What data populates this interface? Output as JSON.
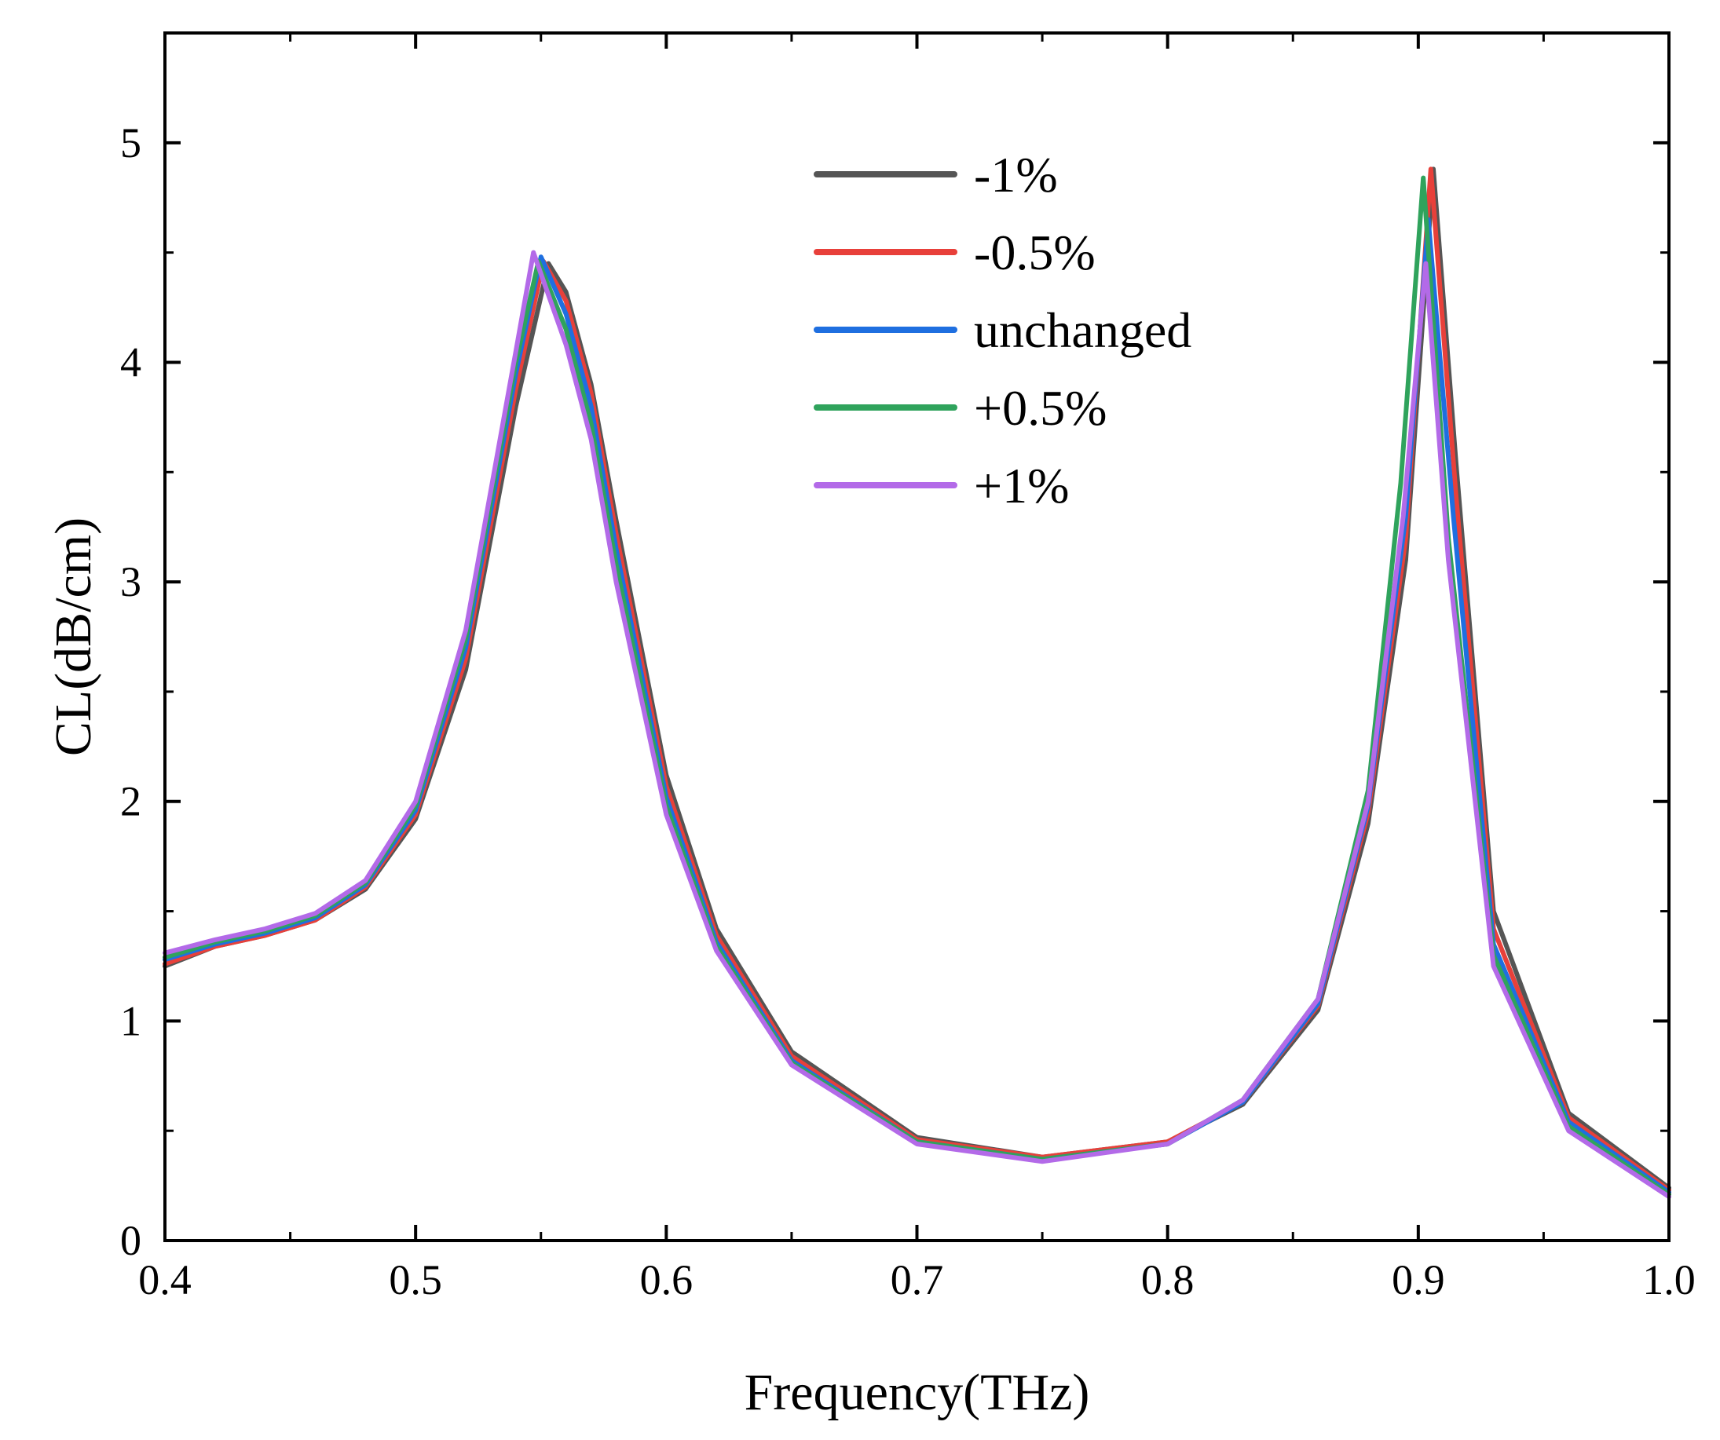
{
  "chart_data": {
    "type": "line",
    "title": "",
    "xlabel": "Frequency(THz)",
    "ylabel": "CL(dB/cm)",
    "xlim": [
      0.4,
      1.0
    ],
    "ylim": [
      0,
      5.5
    ],
    "xticks": [
      0.4,
      0.5,
      0.6,
      0.7,
      0.8,
      0.9,
      1.0
    ],
    "xtick_labels": [
      "0.4",
      "0.5",
      "0.6",
      "0.7",
      "0.8",
      "0.9",
      "1.0"
    ],
    "yticks": [
      0,
      1,
      2,
      3,
      4,
      5
    ],
    "ytick_labels": [
      "0",
      "1",
      "2",
      "3",
      "4",
      "5"
    ],
    "grid": false,
    "legend_position": "top-right",
    "series": [
      {
        "name": "-1%",
        "color": "#555555",
        "x": [
          0.4,
          0.42,
          0.44,
          0.46,
          0.48,
          0.5,
          0.52,
          0.54,
          0.553,
          0.56,
          0.57,
          0.58,
          0.6,
          0.62,
          0.65,
          0.7,
          0.75,
          0.8,
          0.83,
          0.86,
          0.88,
          0.895,
          0.906,
          0.915,
          0.93,
          0.96,
          1.0
        ],
        "y": [
          1.25,
          1.34,
          1.39,
          1.46,
          1.6,
          1.92,
          2.6,
          3.8,
          4.45,
          4.32,
          3.9,
          3.28,
          2.12,
          1.42,
          0.86,
          0.47,
          0.38,
          0.45,
          0.62,
          1.05,
          1.9,
          3.1,
          4.88,
          3.55,
          1.5,
          0.58,
          0.24
        ]
      },
      {
        "name": "-0.5%",
        "color": "#e8403a",
        "x": [
          0.4,
          0.42,
          0.44,
          0.46,
          0.48,
          0.5,
          0.52,
          0.54,
          0.551,
          0.56,
          0.57,
          0.58,
          0.6,
          0.62,
          0.65,
          0.7,
          0.75,
          0.8,
          0.83,
          0.86,
          0.88,
          0.895,
          0.905,
          0.915,
          0.93,
          0.96,
          1.0
        ],
        "y": [
          1.26,
          1.34,
          1.39,
          1.46,
          1.61,
          1.94,
          2.65,
          3.88,
          4.46,
          4.28,
          3.86,
          3.22,
          2.07,
          1.39,
          0.84,
          0.46,
          0.38,
          0.45,
          0.63,
          1.07,
          1.95,
          3.2,
          4.88,
          3.4,
          1.42,
          0.56,
          0.23
        ]
      },
      {
        "name": "unchanged",
        "color": "#1f6fe0",
        "x": [
          0.4,
          0.42,
          0.44,
          0.46,
          0.48,
          0.5,
          0.52,
          0.54,
          0.55,
          0.56,
          0.57,
          0.58,
          0.6,
          0.62,
          0.65,
          0.7,
          0.75,
          0.8,
          0.83,
          0.86,
          0.88,
          0.895,
          0.904,
          0.914,
          0.93,
          0.96,
          1.0
        ],
        "y": [
          1.28,
          1.35,
          1.4,
          1.47,
          1.62,
          1.96,
          2.7,
          3.95,
          4.48,
          4.22,
          3.8,
          3.15,
          2.02,
          1.36,
          0.82,
          0.45,
          0.37,
          0.44,
          0.63,
          1.08,
          1.98,
          3.3,
          4.65,
          3.3,
          1.35,
          0.54,
          0.22
        ]
      },
      {
        "name": "+0.5%",
        "color": "#2fa35c",
        "x": [
          0.4,
          0.42,
          0.44,
          0.46,
          0.48,
          0.5,
          0.52,
          0.54,
          0.549,
          0.56,
          0.57,
          0.58,
          0.6,
          0.62,
          0.65,
          0.7,
          0.75,
          0.8,
          0.83,
          0.86,
          0.88,
          0.893,
          0.902,
          0.912,
          0.93,
          0.96,
          1.0
        ],
        "y": [
          1.29,
          1.36,
          1.41,
          1.48,
          1.63,
          1.98,
          2.74,
          4.0,
          4.46,
          4.15,
          3.72,
          3.08,
          1.98,
          1.34,
          0.81,
          0.45,
          0.37,
          0.44,
          0.64,
          1.1,
          2.05,
          3.45,
          4.84,
          3.2,
          1.3,
          0.52,
          0.21
        ]
      },
      {
        "name": "+1%",
        "color": "#b36ae8",
        "x": [
          0.4,
          0.42,
          0.44,
          0.46,
          0.48,
          0.5,
          0.52,
          0.54,
          0.547,
          0.56,
          0.57,
          0.58,
          0.6,
          0.62,
          0.65,
          0.7,
          0.75,
          0.8,
          0.83,
          0.86,
          0.88,
          0.894,
          0.903,
          0.912,
          0.93,
          0.96,
          1.0
        ],
        "y": [
          1.31,
          1.37,
          1.42,
          1.49,
          1.64,
          2.0,
          2.78,
          4.05,
          4.5,
          4.08,
          3.65,
          3.0,
          1.94,
          1.32,
          0.8,
          0.44,
          0.36,
          0.44,
          0.64,
          1.1,
          2.0,
          3.3,
          4.45,
          3.1,
          1.25,
          0.5,
          0.2
        ]
      }
    ]
  }
}
